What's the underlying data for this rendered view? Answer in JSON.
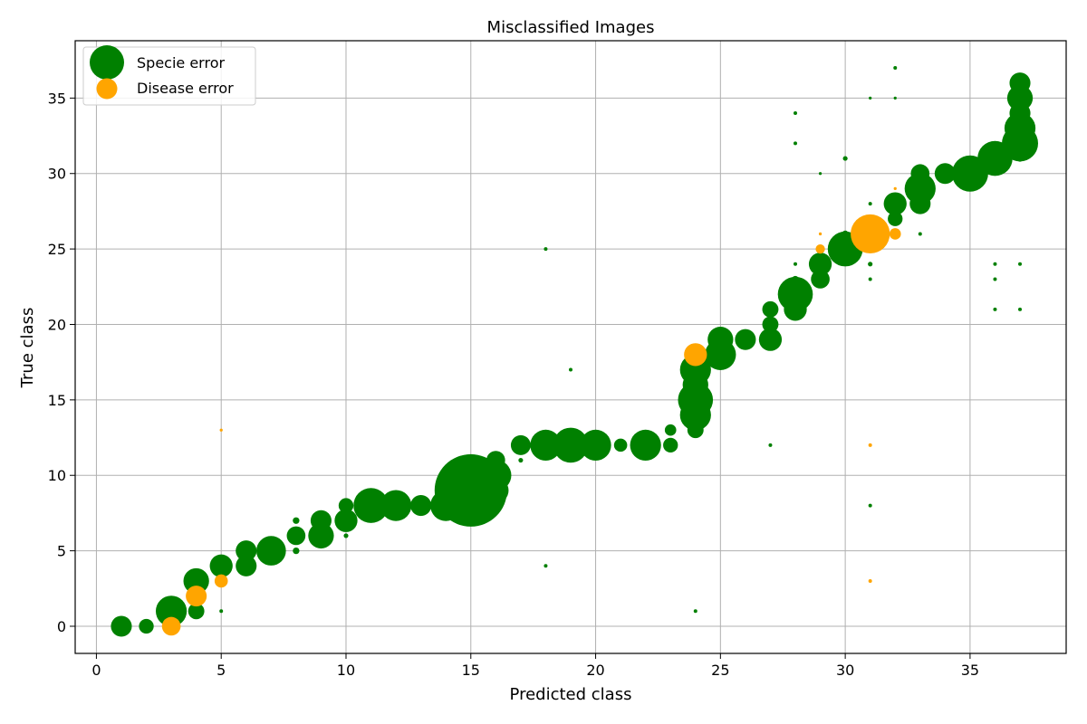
{
  "chart_data": {
    "type": "scatter",
    "title": "Misclassified Images",
    "xlabel": "Predicted class",
    "ylabel": "True class",
    "xlim": [
      -0.85,
      38.85
    ],
    "ylim": [
      -1.8,
      38.8
    ],
    "xticks": [
      0,
      5,
      10,
      15,
      20,
      25,
      30,
      35
    ],
    "yticks": [
      0,
      5,
      10,
      15,
      20,
      25,
      30,
      35
    ],
    "grid": true,
    "legend_position": "top-left",
    "series": [
      {
        "name": "Specie error",
        "color": "#008000",
        "points": [
          {
            "x": 1,
            "y": 0,
            "s": 10
          },
          {
            "x": 2,
            "y": 0,
            "s": 5
          },
          {
            "x": 3,
            "y": 1,
            "s": 22
          },
          {
            "x": 4,
            "y": 3,
            "s": 15
          },
          {
            "x": 4,
            "y": 1,
            "s": 6
          },
          {
            "x": 5,
            "y": 4,
            "s": 12
          },
          {
            "x": 5,
            "y": 1,
            "s": 0.3
          },
          {
            "x": 6,
            "y": 5,
            "s": 10
          },
          {
            "x": 6,
            "y": 4,
            "s": 10
          },
          {
            "x": 7,
            "y": 5,
            "s": 20
          },
          {
            "x": 8,
            "y": 7,
            "s": 1
          },
          {
            "x": 8,
            "y": 6,
            "s": 8
          },
          {
            "x": 8,
            "y": 5,
            "s": 1
          },
          {
            "x": 9,
            "y": 7,
            "s": 10
          },
          {
            "x": 9,
            "y": 6,
            "s": 15
          },
          {
            "x": 10,
            "y": 8,
            "s": 5
          },
          {
            "x": 10,
            "y": 7,
            "s": 12
          },
          {
            "x": 10,
            "y": 6,
            "s": 0.5
          },
          {
            "x": 11,
            "y": 8,
            "s": 28
          },
          {
            "x": 12,
            "y": 8,
            "s": 22
          },
          {
            "x": 13,
            "y": 8,
            "s": 10
          },
          {
            "x": 14,
            "y": 8,
            "s": 22
          },
          {
            "x": 15,
            "y": 9,
            "s": 120
          },
          {
            "x": 16,
            "y": 11,
            "s": 8
          },
          {
            "x": 16,
            "y": 10,
            "s": 22
          },
          {
            "x": 16,
            "y": 9,
            "s": 15
          },
          {
            "x": 17,
            "y": 12,
            "s": 9
          },
          {
            "x": 17,
            "y": 11,
            "s": 0.5
          },
          {
            "x": 18,
            "y": 12,
            "s": 22
          },
          {
            "x": 18,
            "y": 4,
            "s": 0.3
          },
          {
            "x": 18,
            "y": 25,
            "s": 0.3
          },
          {
            "x": 19,
            "y": 12,
            "s": 28
          },
          {
            "x": 19,
            "y": 17,
            "s": 0.3
          },
          {
            "x": 20,
            "y": 12,
            "s": 22
          },
          {
            "x": 21,
            "y": 12,
            "s": 4
          },
          {
            "x": 22,
            "y": 12,
            "s": 22
          },
          {
            "x": 23,
            "y": 13,
            "s": 3
          },
          {
            "x": 23,
            "y": 12,
            "s": 5
          },
          {
            "x": 24,
            "y": 17,
            "s": 22
          },
          {
            "x": 24,
            "y": 16,
            "s": 15
          },
          {
            "x": 24,
            "y": 15,
            "s": 28
          },
          {
            "x": 24,
            "y": 14,
            "s": 22
          },
          {
            "x": 24,
            "y": 13,
            "s": 6
          },
          {
            "x": 24,
            "y": 1,
            "s": 0.3
          },
          {
            "x": 25,
            "y": 19,
            "s": 15
          },
          {
            "x": 25,
            "y": 18,
            "s": 22
          },
          {
            "x": 26,
            "y": 19,
            "s": 10
          },
          {
            "x": 27,
            "y": 21,
            "s": 6
          },
          {
            "x": 27,
            "y": 20,
            "s": 6
          },
          {
            "x": 27,
            "y": 19,
            "s": 12
          },
          {
            "x": 27,
            "y": 12,
            "s": 0.3
          },
          {
            "x": 28,
            "y": 23,
            "s": 1
          },
          {
            "x": 28,
            "y": 22,
            "s": 28
          },
          {
            "x": 28,
            "y": 21,
            "s": 12
          },
          {
            "x": 28,
            "y": 24,
            "s": 0.3
          },
          {
            "x": 28,
            "y": 32,
            "s": 0.3
          },
          {
            "x": 28,
            "y": 34,
            "s": 0.3
          },
          {
            "x": 29,
            "y": 24,
            "s": 12
          },
          {
            "x": 29,
            "y": 23,
            "s": 8
          },
          {
            "x": 29,
            "y": 30,
            "s": 0.2
          },
          {
            "x": 30,
            "y": 26,
            "s": 1
          },
          {
            "x": 30,
            "y": 25,
            "s": 28
          },
          {
            "x": 30,
            "y": 31,
            "s": 0.5
          },
          {
            "x": 31,
            "y": 24,
            "s": 0.5
          },
          {
            "x": 31,
            "y": 23,
            "s": 0.3
          },
          {
            "x": 31,
            "y": 28,
            "s": 0.3
          },
          {
            "x": 31,
            "y": 35,
            "s": 0.2
          },
          {
            "x": 31,
            "y": 8,
            "s": 0.3
          },
          {
            "x": 32,
            "y": 28,
            "s": 12
          },
          {
            "x": 32,
            "y": 27,
            "s": 5
          },
          {
            "x": 32,
            "y": 35,
            "s": 0.2
          },
          {
            "x": 32,
            "y": 37,
            "s": 0.3
          },
          {
            "x": 33,
            "y": 30,
            "s": 8
          },
          {
            "x": 33,
            "y": 29,
            "s": 22
          },
          {
            "x": 33,
            "y": 28,
            "s": 10
          },
          {
            "x": 33,
            "y": 26,
            "s": 0.3
          },
          {
            "x": 34,
            "y": 30,
            "s": 10
          },
          {
            "x": 35,
            "y": 30,
            "s": 30
          },
          {
            "x": 35,
            "y": 31,
            "s": 0.3
          },
          {
            "x": 36,
            "y": 31,
            "s": 28
          },
          {
            "x": 36,
            "y": 30,
            "s": 0.2
          },
          {
            "x": 36,
            "y": 24,
            "s": 0.3
          },
          {
            "x": 36,
            "y": 23,
            "s": 0.3
          },
          {
            "x": 36,
            "y": 21,
            "s": 0.3
          },
          {
            "x": 37,
            "y": 36,
            "s": 10
          },
          {
            "x": 37,
            "y": 35,
            "s": 15
          },
          {
            "x": 37,
            "y": 34,
            "s": 10
          },
          {
            "x": 37,
            "y": 33,
            "s": 22
          },
          {
            "x": 37,
            "y": 32,
            "s": 30
          },
          {
            "x": 37,
            "y": 31,
            "s": 1
          },
          {
            "x": 37,
            "y": 24,
            "s": 0.3
          },
          {
            "x": 37,
            "y": 21,
            "s": 0.3
          }
        ]
      },
      {
        "name": "Disease error",
        "color": "#ffa500",
        "points": [
          {
            "x": 3,
            "y": 0,
            "s": 8
          },
          {
            "x": 4,
            "y": 2,
            "s": 10
          },
          {
            "x": 5,
            "y": 3,
            "s": 4
          },
          {
            "x": 5,
            "y": 13,
            "s": 0.2
          },
          {
            "x": 24,
            "y": 18,
            "s": 12
          },
          {
            "x": 29,
            "y": 26,
            "s": 0.2
          },
          {
            "x": 29,
            "y": 25,
            "s": 2
          },
          {
            "x": 31,
            "y": 26,
            "s": 35
          },
          {
            "x": 31,
            "y": 12,
            "s": 0.3
          },
          {
            "x": 31,
            "y": 3,
            "s": 0.3
          },
          {
            "x": 32,
            "y": 29,
            "s": 0.2
          },
          {
            "x": 32,
            "y": 26,
            "s": 3
          }
        ]
      }
    ]
  }
}
